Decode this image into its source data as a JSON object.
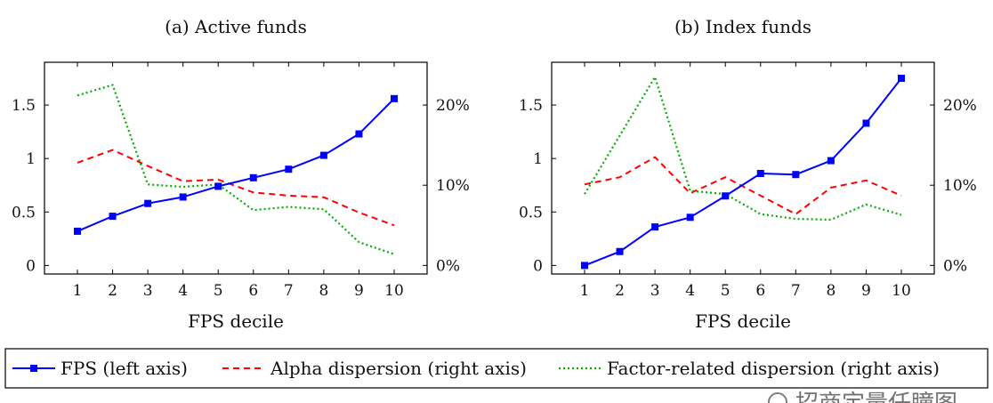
{
  "chart_data": [
    {
      "type": "line",
      "title": "(a) Active funds",
      "xlabel": "FPS decile",
      "ylabel": "",
      "categories": [
        "1",
        "2",
        "3",
        "4",
        "5",
        "6",
        "7",
        "8",
        "9",
        "10"
      ],
      "x_ticks": [
        "1",
        "2",
        "3",
        "4",
        "5",
        "6",
        "7",
        "8",
        "9",
        "10"
      ],
      "left_axis": {
        "ylim": [
          -0.08,
          1.9
        ],
        "ticks": [
          0,
          0.5,
          1,
          1.5
        ],
        "tick_labels": [
          "0",
          "0.5",
          "1",
          "1.5"
        ]
      },
      "right_axis": {
        "ylim": [
          -0.0107,
          0.2533
        ],
        "ticks": [
          0,
          0.1,
          0.2
        ],
        "tick_labels": [
          "0%",
          "10%",
          "20%"
        ]
      },
      "series": [
        {
          "name": "FPS (left axis)",
          "axis": "left",
          "color": "#0000ff",
          "style": "solid-square",
          "values": [
            0.32,
            0.46,
            0.58,
            0.64,
            0.74,
            0.82,
            0.9,
            1.03,
            1.23,
            1.56
          ]
        },
        {
          "name": "Alpha dispersion (right axis)",
          "axis": "right",
          "color": "#ff0000",
          "style": "dashed",
          "values": [
            0.128,
            0.144,
            0.124,
            0.105,
            0.107,
            0.091,
            0.087,
            0.085,
            0.066,
            0.05
          ]
        },
        {
          "name": "Factor-related dispersion (right axis)",
          "axis": "right",
          "color": "#00b000",
          "style": "dotted",
          "values": [
            0.212,
            0.225,
            0.101,
            0.098,
            0.101,
            0.069,
            0.073,
            0.07,
            0.029,
            0.014
          ]
        }
      ],
      "grid": false
    },
    {
      "type": "line",
      "title": "(b) Index funds",
      "xlabel": "FPS decile",
      "ylabel": "",
      "categories": [
        "1",
        "2",
        "3",
        "4",
        "5",
        "6",
        "7",
        "8",
        "9",
        "10"
      ],
      "x_ticks": [
        "1",
        "2",
        "3",
        "4",
        "5",
        "6",
        "7",
        "8",
        "9",
        "10"
      ],
      "left_axis": {
        "ylim": [
          -0.08,
          1.9
        ],
        "ticks": [
          0,
          0.5,
          1,
          1.5
        ],
        "tick_labels": [
          "0",
          "0.5",
          "1",
          "1.5"
        ]
      },
      "right_axis": {
        "ylim": [
          -0.0107,
          0.2533
        ],
        "ticks": [
          0,
          0.1,
          0.2
        ],
        "tick_labels": [
          "0%",
          "10%",
          "20%"
        ]
      },
      "series": [
        {
          "name": "FPS (left axis)",
          "axis": "left",
          "color": "#0000ff",
          "style": "solid-square",
          "values": [
            0.0,
            0.13,
            0.36,
            0.45,
            0.65,
            0.86,
            0.85,
            0.98,
            1.33,
            1.75
          ]
        },
        {
          "name": "Alpha dispersion (right axis)",
          "axis": "right",
          "color": "#ff0000",
          "style": "dashed",
          "values": [
            0.101,
            0.11,
            0.135,
            0.09,
            0.11,
            0.087,
            0.064,
            0.097,
            0.106,
            0.087
          ]
        },
        {
          "name": "Factor-related dispersion (right axis)",
          "axis": "right",
          "color": "#00b000",
          "style": "dotted",
          "values": [
            0.089,
            0.162,
            0.235,
            0.093,
            0.089,
            0.064,
            0.058,
            0.057,
            0.076,
            0.063
          ]
        }
      ],
      "grid": false
    }
  ],
  "legend": {
    "placement": "bottom",
    "items": [
      {
        "label": "FPS (left axis)",
        "color": "#0000ff",
        "style": "solid-square"
      },
      {
        "label": "Alpha dispersion (right axis)",
        "color": "#ff0000",
        "style": "dashed"
      },
      {
        "label": "Factor-related dispersion (right axis)",
        "color": "#00b000",
        "style": "dotted"
      }
    ]
  },
  "watermark": {
    "text": "招商定量任瞳图"
  }
}
